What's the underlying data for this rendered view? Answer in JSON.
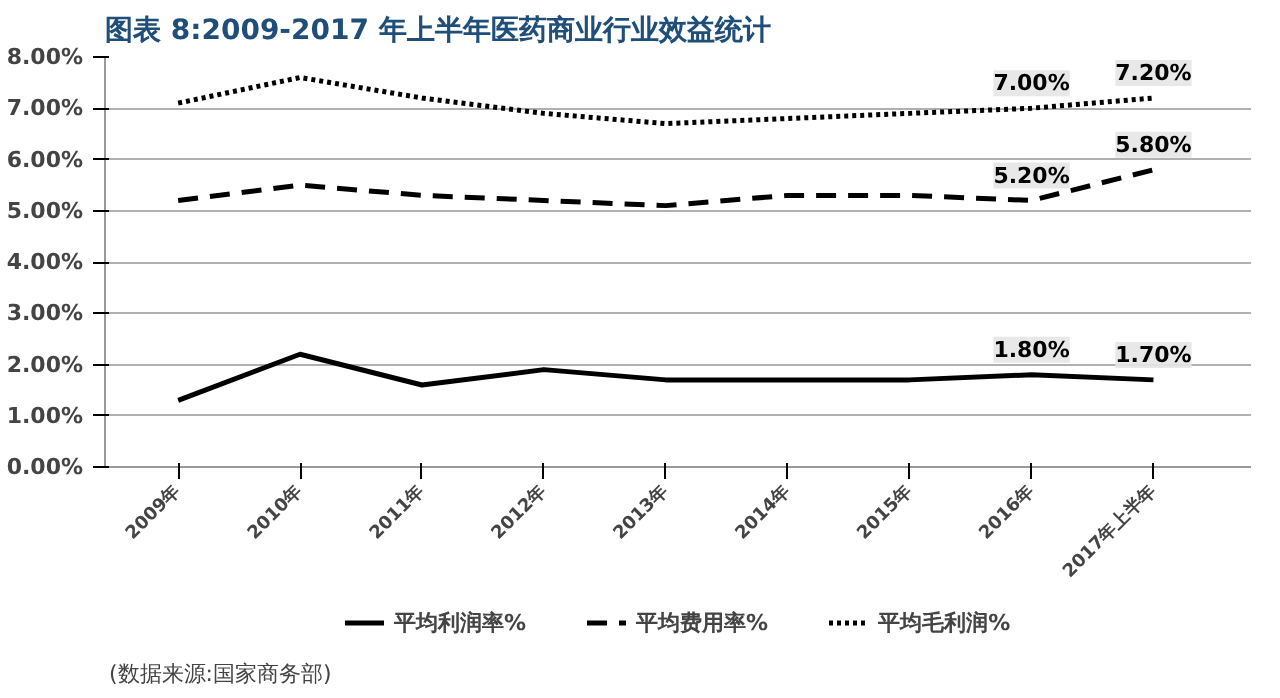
{
  "chart_data": {
    "type": "line",
    "title": "图表 8:2009-2017 年上半年医药商业行业效益统计",
    "categories": [
      "2009年",
      "2010年",
      "2011年",
      "2012年",
      "2013年",
      "2014年",
      "2015年",
      "2016年",
      "2017年上半年"
    ],
    "series": [
      {
        "name": "平均利润率%",
        "color": "#000000",
        "line_style": "solid",
        "values": [
          1.3,
          2.2,
          1.6,
          1.9,
          1.7,
          1.7,
          1.7,
          1.8,
          1.7
        ],
        "value_labels": [
          null,
          null,
          null,
          null,
          null,
          null,
          null,
          "1.80%",
          "1.70%"
        ]
      },
      {
        "name": "平均费用率%",
        "color": "#000000",
        "line_style": "dashed",
        "values": [
          5.2,
          5.5,
          5.3,
          5.2,
          5.1,
          5.3,
          5.3,
          5.2,
          5.8
        ],
        "value_labels": [
          null,
          null,
          null,
          null,
          null,
          null,
          null,
          "5.20%",
          "5.80%"
        ]
      },
      {
        "name": "平均毛利润%",
        "color": "#000000",
        "line_style": "dotted",
        "values": [
          7.1,
          7.6,
          7.2,
          6.9,
          6.7,
          6.8,
          6.9,
          7.0,
          7.2
        ],
        "value_labels": [
          null,
          null,
          null,
          null,
          null,
          null,
          null,
          "7.00%",
          "7.20%"
        ]
      }
    ],
    "ylim": [
      0,
      8
    ],
    "yticks": [
      {
        "value": 0,
        "label": "0.00%"
      },
      {
        "value": 1,
        "label": "1.00%"
      },
      {
        "value": 2,
        "label": "2.00%"
      },
      {
        "value": 3,
        "label": "3.00%"
      },
      {
        "value": 4,
        "label": "4.00%"
      },
      {
        "value": 5,
        "label": "5.00%"
      },
      {
        "value": 6,
        "label": "6.00%"
      },
      {
        "value": 7,
        "label": "7.00%"
      },
      {
        "value": 8,
        "label": "8.00%"
      }
    ],
    "grid": "y",
    "legend": "bottom",
    "marker": "none",
    "annotations": [
      "(数据来源:国家商务部)"
    ]
  }
}
